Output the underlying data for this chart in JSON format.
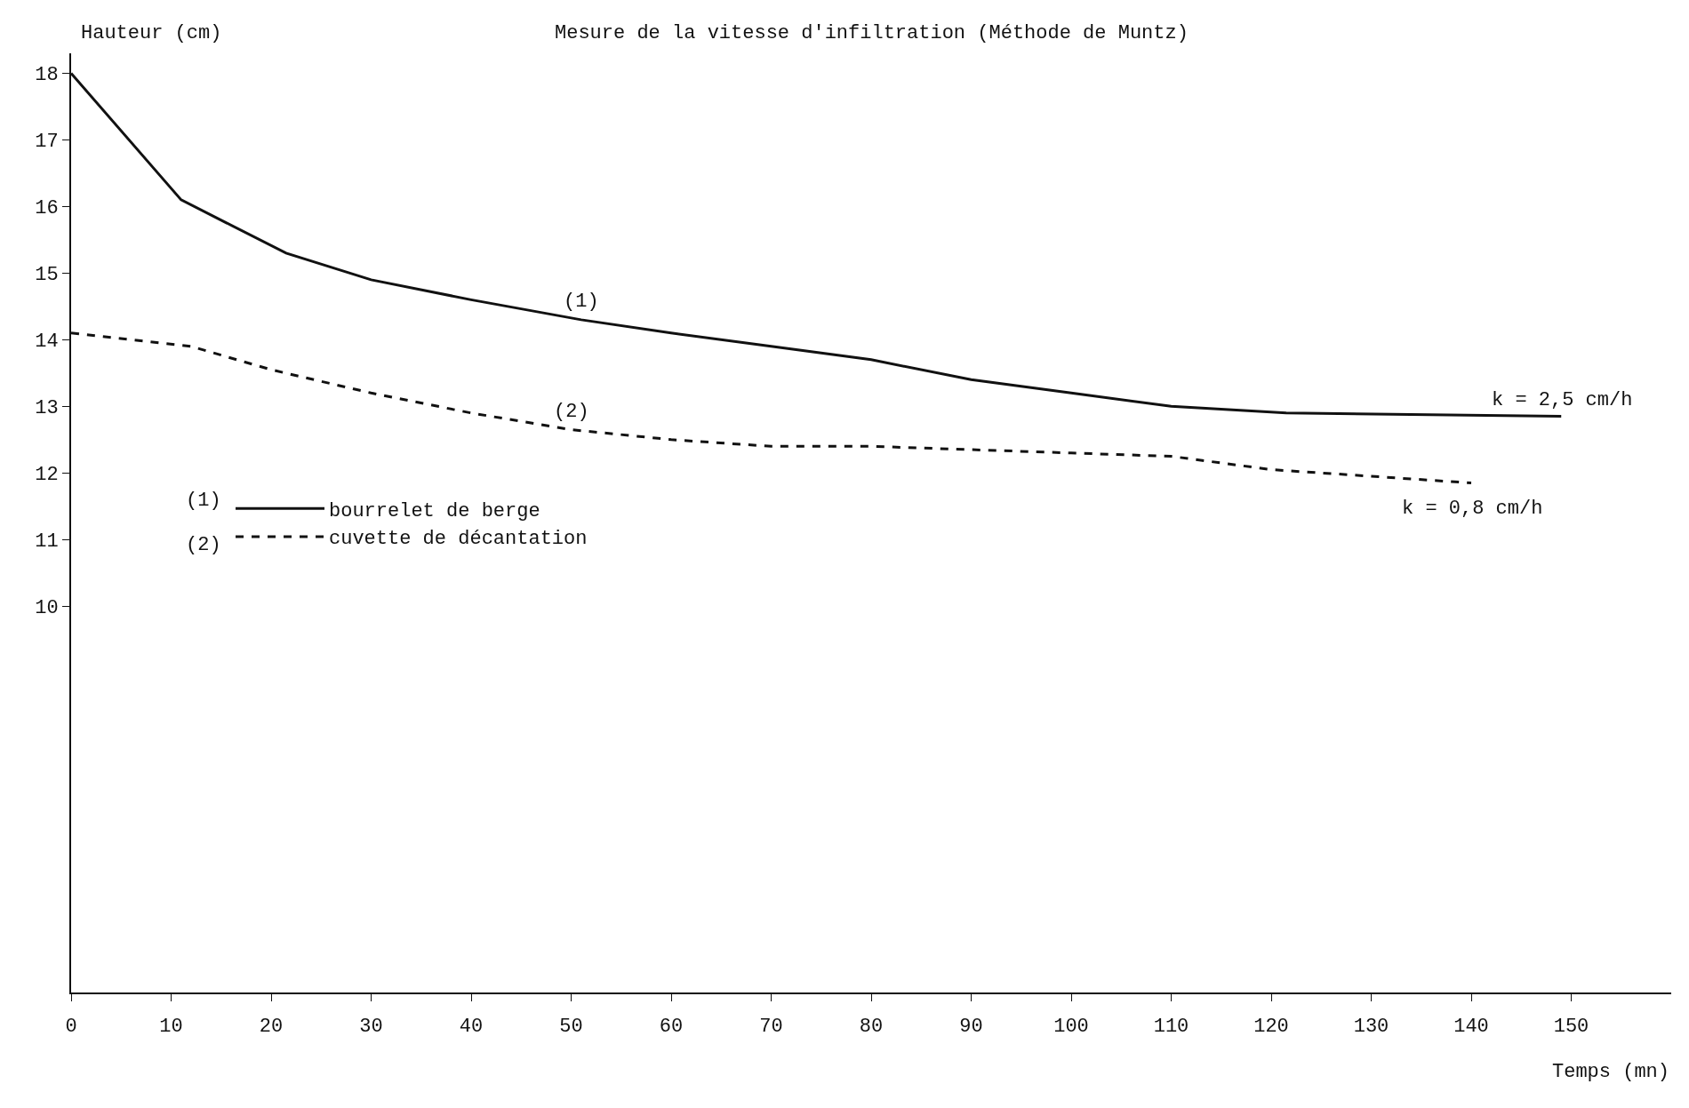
{
  "chart_data": {
    "type": "line",
    "title": "Mesure de la vitesse d'infiltration (Méthode de Muntz)",
    "xlabel": "Temps (mn)",
    "ylabel": "Hauteur (cm)",
    "xlim": [
      0,
      160
    ],
    "xticks": [
      0,
      10,
      20,
      30,
      40,
      50,
      60,
      70,
      80,
      90,
      100,
      110,
      120,
      130,
      140,
      150
    ],
    "ylim": [
      4.2,
      18.3
    ],
    "yticks": [
      10,
      11,
      12,
      13,
      14,
      15,
      16,
      17,
      18
    ],
    "grid": false,
    "legend": "left",
    "marker": "none",
    "series": [
      {
        "name": "bourrelet de berge",
        "color": "#111111",
        "line_style": "solid",
        "x": [
          0,
          11,
          21.5,
          30,
          40,
          51,
          60,
          70,
          80,
          90,
          100,
          110,
          121.5,
          149
        ],
        "values": [
          18,
          16.1,
          15.3,
          14.9,
          14.6,
          14.3,
          14.1,
          13.9,
          13.7,
          13.4,
          13.2,
          13.0,
          12.9,
          12.85
        ]
      },
      {
        "name": "cuvette de décantation",
        "color": "#111111",
        "line_style": "dashed",
        "x": [
          0,
          12,
          20,
          30,
          40,
          50,
          60,
          70,
          80,
          90,
          100,
          110,
          120,
          130,
          140
        ],
        "values": [
          14.1,
          13.9,
          13.55,
          13.2,
          12.9,
          12.65,
          12.5,
          12.4,
          12.4,
          12.35,
          12.3,
          12.25,
          12.05,
          11.95,
          11.85
        ]
      }
    ],
    "annotations": [
      {
        "text": "(1)",
        "x": 51,
        "y": 14.3
      },
      {
        "text": "(2)",
        "x": 50,
        "y": 12.65
      },
      {
        "text": "k = 2,5 cm/h",
        "x": 149,
        "y": 12.85
      },
      {
        "text": "k = 0,8 cm/h",
        "x": 140,
        "y": 11.85
      },
      "(1)",
      "(2)"
    ]
  }
}
